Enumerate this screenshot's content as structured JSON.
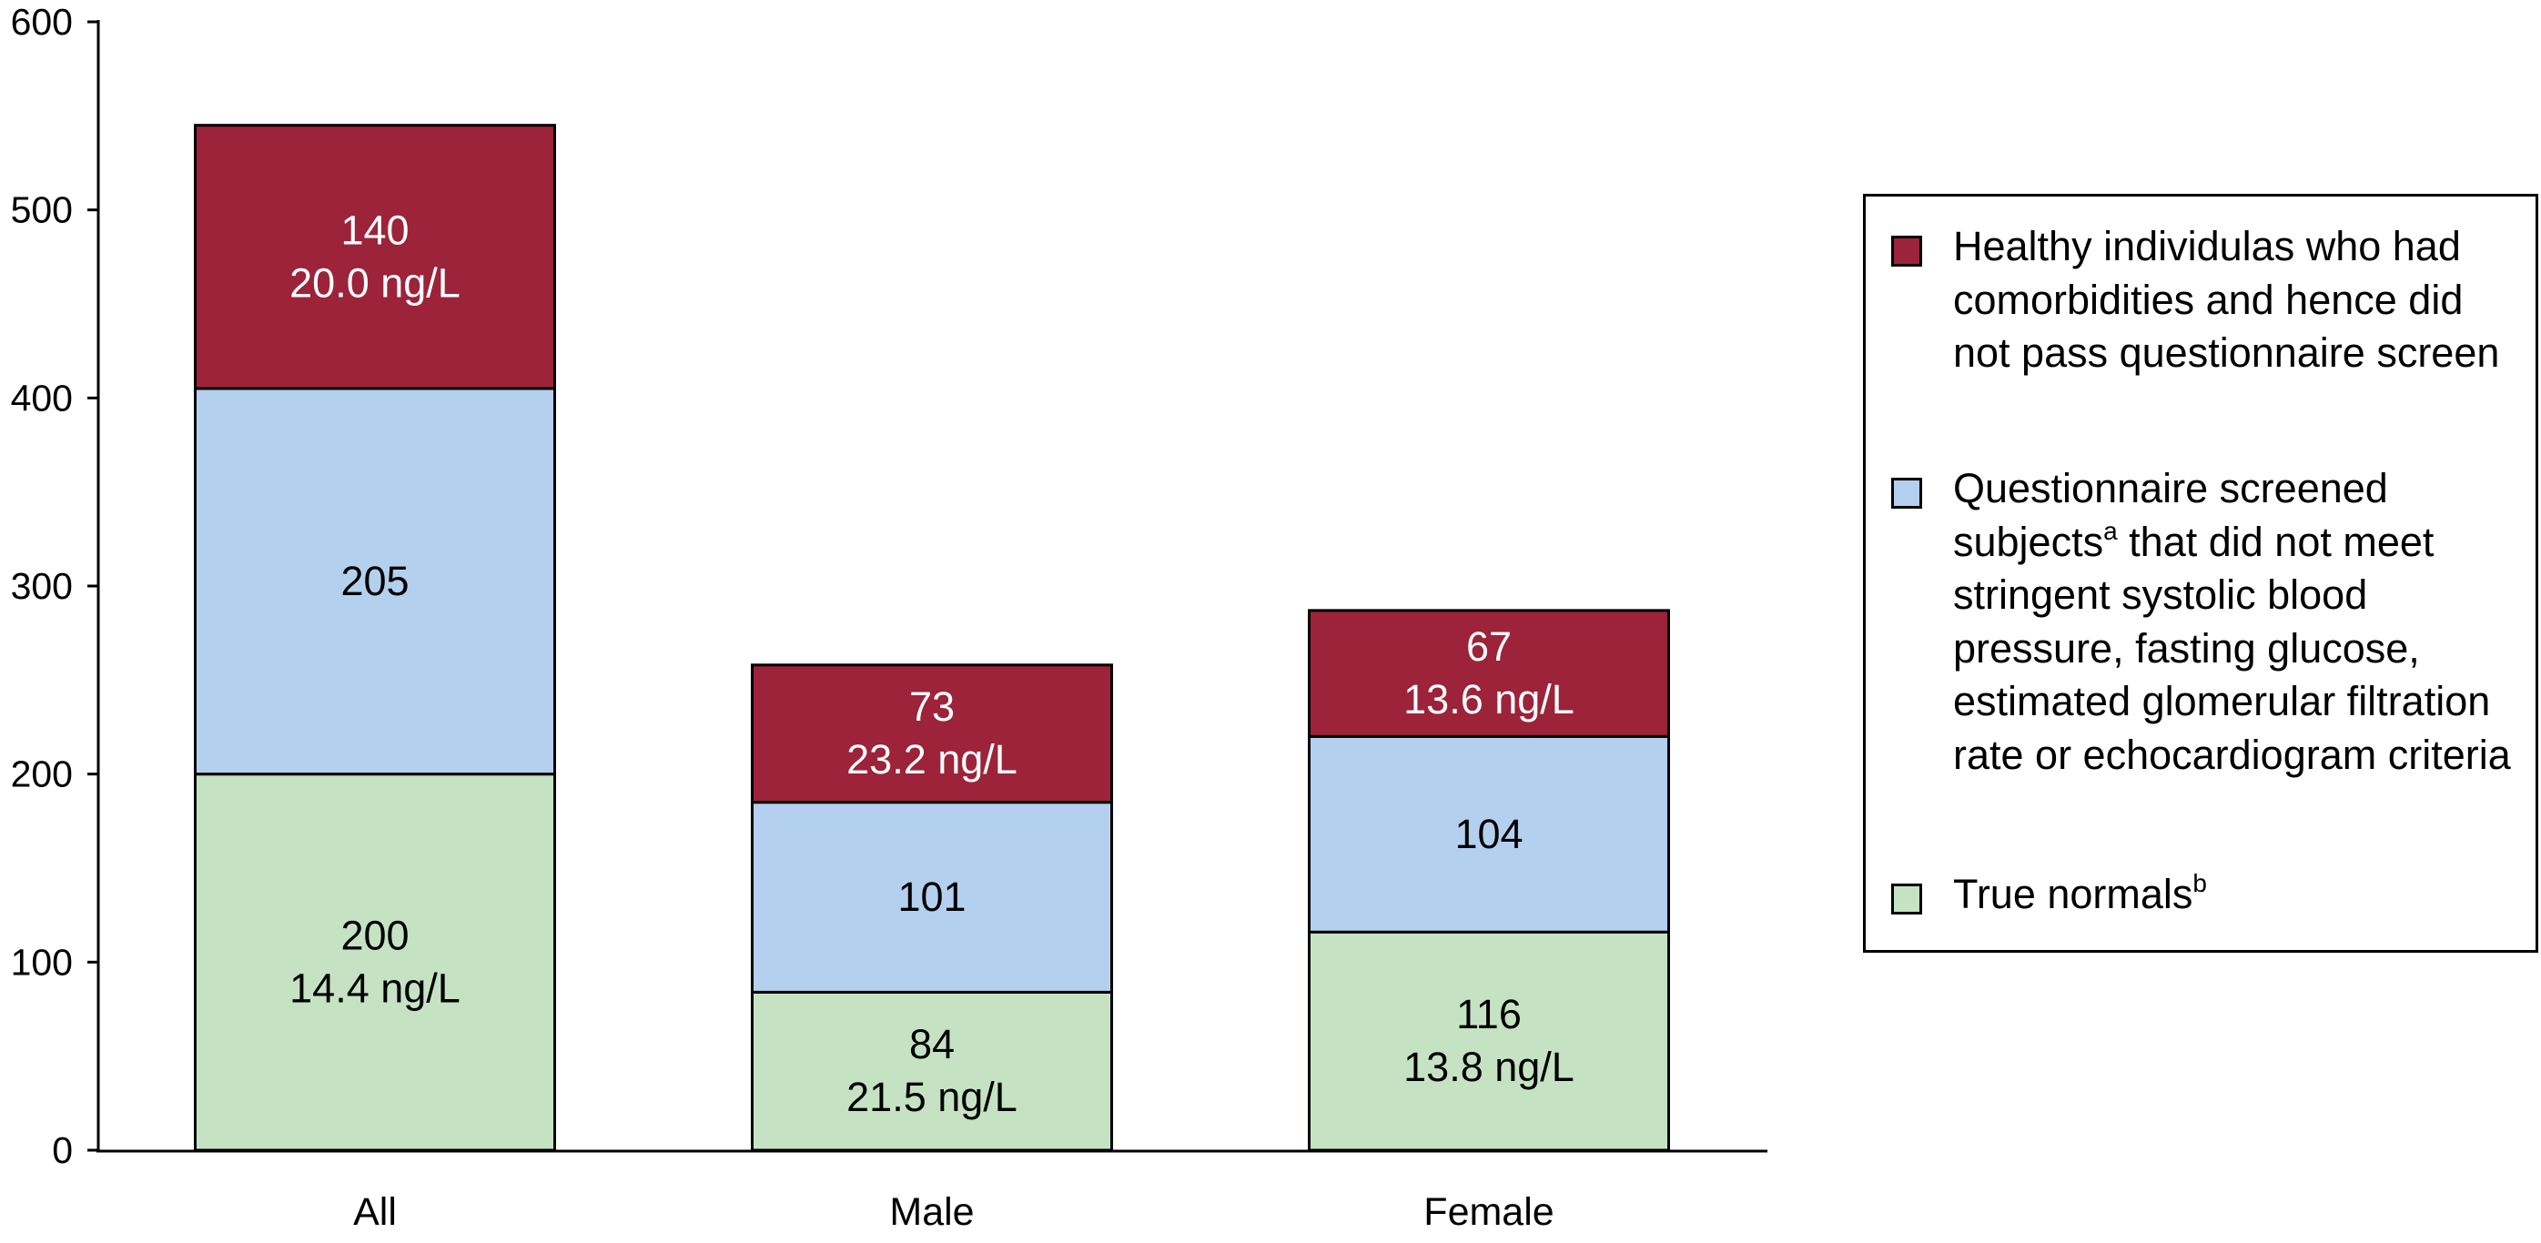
{
  "chart_data": {
    "type": "bar",
    "stacked": true,
    "categories": [
      "All",
      "Male",
      "Female"
    ],
    "ylim": [
      0,
      600
    ],
    "yticks": [
      "0",
      "100",
      "200",
      "300",
      "400",
      "500",
      "600"
    ],
    "grid": false,
    "legend_position": "right",
    "series": [
      {
        "name": "True normals",
        "superscript": "b",
        "color": "#c5e3c3",
        "values": [
          200,
          84,
          116
        ],
        "sublabels": [
          "14.4 ng/L",
          "21.5 ng/L",
          "13.8 ng/L"
        ],
        "text_color": "#000000"
      },
      {
        "name": "Questionnaire screened subjects that did not meet stringent systolic blood pressure, fasting glucose, estimated glomerular filtration rate or echocardiogram criteria",
        "name_parts": [
          "Questionnaire screened subjects",
          "a",
          " that did not meet stringent systolic blood pressure, fasting glucose, estimated glomerular filtration rate or echocardiogram criteria"
        ],
        "color": "#b3d0ee",
        "values": [
          205,
          101,
          104
        ],
        "sublabels": [
          "",
          "",
          ""
        ],
        "text_color": "#000000"
      },
      {
        "name": "Healthy individulas who had comorbidities and hence did not pass questionnaire screen",
        "color": "#9c2339",
        "values": [
          140,
          73,
          67
        ],
        "sublabels": [
          "20.0 ng/L",
          "23.2 ng/L",
          "13.6 ng/L"
        ],
        "text_color": "#ffffff"
      }
    ]
  }
}
